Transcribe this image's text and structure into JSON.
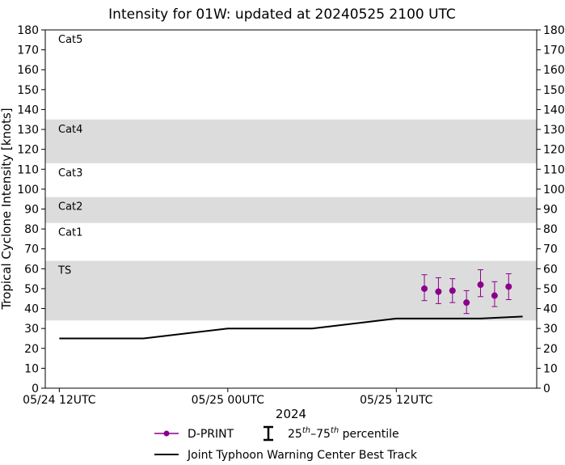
{
  "chart_data": {
    "type": "scatter",
    "title": "Intensity for 01W: updated at 20240525 2100 UTC",
    "xlabel": "2024",
    "ylabel": "Tropical Cyclone Intensity [knots]",
    "ylim": [
      0,
      180
    ],
    "xlim_hours": [
      -1,
      34
    ],
    "yticks": [
      0,
      10,
      20,
      30,
      40,
      50,
      60,
      70,
      80,
      90,
      100,
      110,
      120,
      130,
      140,
      150,
      160,
      170,
      180
    ],
    "xticks": [
      {
        "hour": 0,
        "label": "05/24 12UTC"
      },
      {
        "hour": 12,
        "label": "05/25 00UTC"
      },
      {
        "hour": 24,
        "label": "05/25 12UTC"
      }
    ],
    "category_bands": [
      {
        "label": "TS",
        "low": 34,
        "high": 64,
        "shaded": true
      },
      {
        "label": "Cat1",
        "low": 64,
        "high": 83,
        "shaded": false
      },
      {
        "label": "Cat2",
        "low": 83,
        "high": 96,
        "shaded": true
      },
      {
        "label": "Cat3",
        "low": 96,
        "high": 113,
        "shaded": false
      },
      {
        "label": "Cat4",
        "low": 113,
        "high": 135,
        "shaded": true
      },
      {
        "label": "Cat5",
        "low": 135,
        "high": 180,
        "shaded": false
      }
    ],
    "best_track": {
      "name": "Joint Typhoon Warning Center Best Track",
      "color": "#000000",
      "x_hours": [
        0,
        6,
        12,
        18,
        24,
        30,
        33
      ],
      "values": [
        25,
        25,
        30,
        30,
        35,
        35,
        36
      ]
    },
    "dprint": {
      "name": "D-PRINT",
      "color": "#8b008b",
      "x_hours": [
        26,
        27,
        28,
        29,
        30,
        31,
        32
      ],
      "values": [
        50,
        48.5,
        49,
        43,
        52,
        46.5,
        51
      ],
      "p25": [
        44,
        42.5,
        43,
        37.5,
        46,
        41,
        44.5
      ],
      "p75": [
        57,
        55.5,
        55,
        49,
        59.5,
        53.5,
        57.5
      ]
    },
    "band_color": "#dcdcdc",
    "legend": {
      "dprint_label": "D-PRINT",
      "percentile_label": "percentile",
      "percentile_p25": "25",
      "percentile_p75": "75",
      "percentile_sup": "th",
      "percentile_dash": "–",
      "track_label": "Joint Typhoon Warning Center Best Track"
    }
  }
}
